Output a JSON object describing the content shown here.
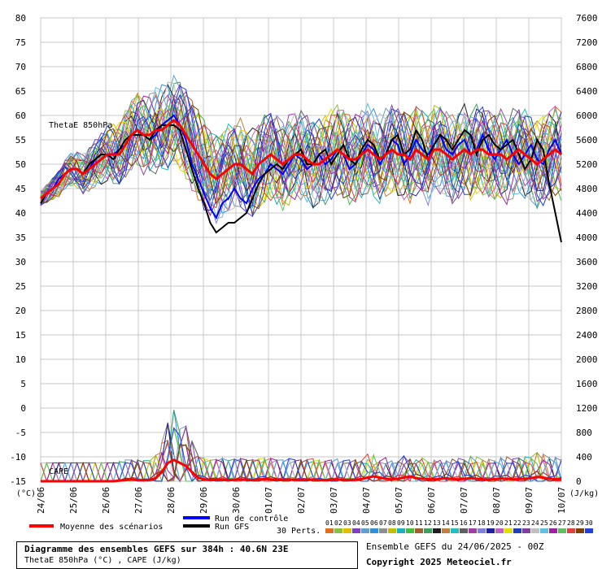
{
  "chart_data": {
    "type": "line",
    "title": "Diagramme des ensembles GEFS sur 384h : 40.6N 23E",
    "subtitle": "ThetaE 850hPa (°C) , CAPE (J/kg)",
    "run_info": "Ensemble GEFS du 24/06/2025 - 00Z",
    "copyright": "Copyright 2025 Meteociel.fr",
    "panel_labels": {
      "thetae": "ThetaE 850hPa",
      "cape": "CAPE"
    },
    "left_axis": {
      "unit": "(°C)",
      "ticks": [
        "80",
        "75",
        "70",
        "65",
        "60",
        "55",
        "50",
        "45",
        "40",
        "35",
        "30",
        "25",
        "20",
        "15",
        "10",
        "5",
        "0",
        "-5",
        "-10",
        "-15"
      ],
      "ylim": [
        -15,
        80
      ]
    },
    "right_axis": {
      "unit": "(J/kg)",
      "ticks": [
        "7600",
        "7200",
        "6800",
        "6400",
        "6000",
        "5600",
        "5200",
        "4800",
        "4400",
        "4000",
        "3600",
        "3200",
        "2800",
        "2400",
        "2000",
        "1600",
        "1200",
        "800",
        "400",
        "0"
      ],
      "ylim": [
        0,
        7600
      ]
    },
    "x_dates": [
      "24/06",
      "25/06",
      "26/06",
      "27/06",
      "28/06",
      "29/06",
      "30/06",
      "01/07",
      "02/07",
      "03/07",
      "04/07",
      "05/07",
      "06/07",
      "07/07",
      "08/07",
      "09/07",
      "10/07"
    ],
    "legend": {
      "mean": "Moyenne des scénarios",
      "control": "Run de contrôle",
      "gfs": "Run GFS",
      "perts_label": "30 Perts.",
      "pert_numbers": [
        "01",
        "02",
        "03",
        "04",
        "05",
        "06",
        "07",
        "08",
        "09",
        "10",
        "11",
        "12",
        "13",
        "14",
        "15",
        "16",
        "17",
        "18",
        "19",
        "20",
        "21",
        "22",
        "23",
        "24",
        "25",
        "26",
        "27",
        "28",
        "29",
        "30"
      ],
      "pert_colors": [
        "#e07020",
        "#8fbf3f",
        "#e0c000",
        "#8040c0",
        "#60a0d0",
        "#3090e0",
        "#909090",
        "#c0c000",
        "#20b0c0",
        "#40c040",
        "#a06030",
        "#40a060",
        "#202020",
        "#c08040",
        "#20c0c0",
        "#606060",
        "#a040a0",
        "#8080e0",
        "#2020a0",
        "#c060c0",
        "#e0e000",
        "#2040c0",
        "#8040a0",
        "#c0c0c0",
        "#60c0e0",
        "#a020a0",
        "#60c060",
        "#e04040",
        "#804000",
        "#2040e0"
      ]
    },
    "series_mean_thetae": [
      43,
      44,
      45,
      46,
      48,
      49,
      49,
      48,
      49,
      50,
      51,
      52,
      52,
      52,
      54,
      56,
      57,
      56,
      56,
      57,
      57,
      58,
      59,
      58,
      56,
      54,
      52,
      50,
      48,
      47,
      48,
      49,
      50,
      50,
      49,
      48,
      50,
      51,
      52,
      51,
      50,
      51,
      52,
      52,
      51,
      50,
      50,
      51,
      52,
      53,
      52,
      51,
      51,
      52,
      53,
      52,
      51,
      52,
      53,
      52,
      52,
      51,
      53,
      52,
      51,
      53,
      53,
      52,
      51,
      52,
      53,
      52,
      53,
      53,
      52,
      52,
      52,
      51,
      52,
      53,
      52,
      51,
      50,
      51,
      52,
      53,
      52
    ],
    "series_control_thetae": [
      43,
      44,
      45,
      47,
      48,
      49,
      49,
      48,
      49,
      51,
      52,
      52,
      52,
      53,
      54,
      56,
      57,
      56,
      55,
      56,
      58,
      59,
      60,
      58,
      55,
      50,
      47,
      44,
      41,
      39,
      42,
      43,
      45,
      43,
      42,
      45,
      47,
      48,
      50,
      49,
      48,
      50,
      52,
      51,
      49,
      50,
      52,
      50,
      51,
      53,
      52,
      49,
      50,
      52,
      54,
      53,
      50,
      52,
      55,
      54,
      50,
      52,
      55,
      53,
      52,
      54,
      56,
      53,
      52,
      54,
      55,
      52,
      53,
      56,
      53,
      51,
      53,
      55,
      52,
      50,
      52,
      54,
      51,
      50,
      53,
      55,
      52
    ],
    "series_gfs_thetae": [
      42,
      44,
      45,
      46,
      48,
      49,
      49,
      48,
      50,
      51,
      52,
      52,
      51,
      53,
      55,
      56,
      56,
      56,
      55,
      57,
      58,
      58,
      58,
      57,
      53,
      49,
      45,
      42,
      38,
      36,
      37,
      38,
      38,
      39,
      40,
      43,
      46,
      48,
      49,
      50,
      49,
      51,
      52,
      53,
      50,
      50,
      52,
      53,
      50,
      52,
      54,
      51,
      50,
      53,
      55,
      54,
      51,
      52,
      55,
      56,
      52,
      53,
      57,
      55,
      51,
      54,
      56,
      55,
      53,
      55,
      57,
      56,
      52,
      55,
      56,
      54,
      53,
      54,
      55,
      52,
      49,
      51,
      55,
      53,
      46,
      40,
      34
    ],
    "series_mean_cape": [
      0,
      0,
      0,
      0,
      0,
      0,
      0,
      0,
      0,
      0,
      0,
      0,
      0,
      10,
      20,
      30,
      20,
      15,
      20,
      50,
      150,
      300,
      350,
      300,
      250,
      150,
      60,
      30,
      20,
      25,
      30,
      20,
      25,
      30,
      25,
      20,
      30,
      35,
      30,
      25,
      20,
      30,
      25,
      20,
      25,
      30,
      20,
      15,
      20,
      30,
      25,
      20,
      25,
      35,
      60,
      80,
      60,
      40,
      30,
      40,
      60,
      80,
      50,
      40,
      35,
      30,
      40,
      50,
      35,
      30,
      40,
      50,
      40,
      30,
      25,
      35,
      45,
      40,
      30,
      35,
      40,
      50,
      70,
      60,
      40,
      35,
      30
    ]
  }
}
